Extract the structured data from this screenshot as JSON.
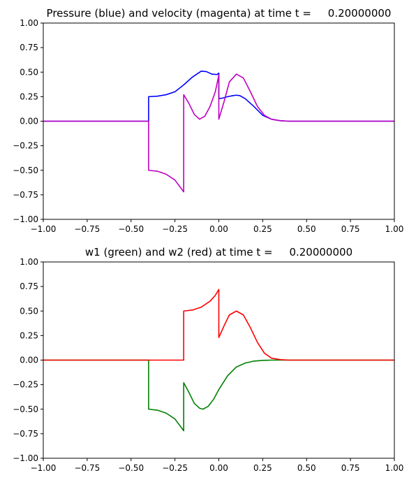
{
  "chart_data": [
    {
      "type": "line",
      "title": "Pressure (blue) and velocity (magenta) at time t =     0.20000000",
      "xlim": [
        -1.0,
        1.0
      ],
      "ylim": [
        -1.0,
        1.0
      ],
      "xticks": [
        "−1.00",
        "−0.75",
        "−0.50",
        "−0.25",
        "0.00",
        "0.25",
        "0.50",
        "0.75",
        "1.00"
      ],
      "yticks": [
        "−1.00",
        "−0.75",
        "−0.50",
        "−0.25",
        "0.00",
        "0.25",
        "0.50",
        "0.75",
        "1.00"
      ],
      "grid": false,
      "series": [
        {
          "color": "#0000ff",
          "x": [
            -1.0,
            -0.4,
            -0.4,
            -0.35,
            -0.3,
            -0.25,
            -0.2,
            -0.15,
            -0.1,
            -0.07,
            -0.04,
            -0.01,
            0.0,
            0.0,
            0.02,
            0.05,
            0.08,
            0.1,
            0.12,
            0.15,
            0.2,
            0.25,
            0.3,
            0.35,
            0.4,
            1.0
          ],
          "y": [
            0.0,
            0.0,
            0.25,
            0.255,
            0.27,
            0.3,
            0.37,
            0.45,
            0.51,
            0.505,
            0.48,
            0.475,
            0.49,
            0.23,
            0.235,
            0.25,
            0.26,
            0.265,
            0.26,
            0.23,
            0.15,
            0.06,
            0.02,
            0.005,
            0.0,
            0.0
          ]
        },
        {
          "color": "#bf00bf",
          "x": [
            -1.0,
            -0.4,
            -0.4,
            -0.35,
            -0.3,
            -0.25,
            -0.2,
            -0.2,
            -0.17,
            -0.14,
            -0.11,
            -0.08,
            -0.05,
            -0.02,
            0.0,
            0.0,
            0.03,
            0.06,
            0.1,
            0.14,
            0.18,
            0.22,
            0.26,
            0.3,
            0.35,
            0.4,
            1.0
          ],
          "y": [
            0.0,
            0.0,
            -0.5,
            -0.51,
            -0.54,
            -0.6,
            -0.72,
            0.27,
            0.18,
            0.07,
            0.02,
            0.05,
            0.15,
            0.3,
            0.47,
            0.02,
            0.2,
            0.4,
            0.48,
            0.44,
            0.3,
            0.15,
            0.06,
            0.02,
            0.005,
            0.0,
            0.0
          ]
        }
      ]
    },
    {
      "type": "line",
      "title": "w1 (green) and w2 (red) at time t =     0.20000000",
      "xlim": [
        -1.0,
        1.0
      ],
      "ylim": [
        -1.0,
        1.0
      ],
      "xticks": [
        "−1.00",
        "−0.75",
        "−0.50",
        "−0.25",
        "0.00",
        "0.25",
        "0.50",
        "0.75",
        "1.00"
      ],
      "yticks": [
        "−1.00",
        "−0.75",
        "−0.50",
        "−0.25",
        "0.00",
        "0.25",
        "0.50",
        "0.75",
        "1.00"
      ],
      "grid": false,
      "series": [
        {
          "color": "#008000",
          "x": [
            -1.0,
            -0.4,
            -0.4,
            -0.35,
            -0.3,
            -0.25,
            -0.2,
            -0.2,
            -0.17,
            -0.14,
            -0.11,
            -0.09,
            -0.06,
            -0.03,
            0.0,
            0.05,
            0.1,
            0.15,
            0.2,
            0.25,
            0.3,
            0.35,
            0.4,
            1.0
          ],
          "y": [
            0.0,
            0.0,
            -0.5,
            -0.51,
            -0.54,
            -0.6,
            -0.72,
            -0.23,
            -0.33,
            -0.44,
            -0.49,
            -0.5,
            -0.47,
            -0.4,
            -0.3,
            -0.16,
            -0.07,
            -0.03,
            -0.01,
            -0.003,
            0.0,
            0.0,
            0.0,
            0.0
          ]
        },
        {
          "color": "#ff0000",
          "x": [
            -1.0,
            -0.2,
            -0.2,
            -0.15,
            -0.1,
            -0.05,
            -0.02,
            0.0,
            0.0,
            0.03,
            0.06,
            0.1,
            0.14,
            0.18,
            0.22,
            0.26,
            0.3,
            0.35,
            0.4,
            1.0
          ],
          "y": [
            0.0,
            0.0,
            0.5,
            0.51,
            0.54,
            0.6,
            0.66,
            0.72,
            0.23,
            0.35,
            0.46,
            0.5,
            0.46,
            0.33,
            0.18,
            0.07,
            0.02,
            0.005,
            0.0,
            0.0
          ]
        }
      ]
    }
  ]
}
